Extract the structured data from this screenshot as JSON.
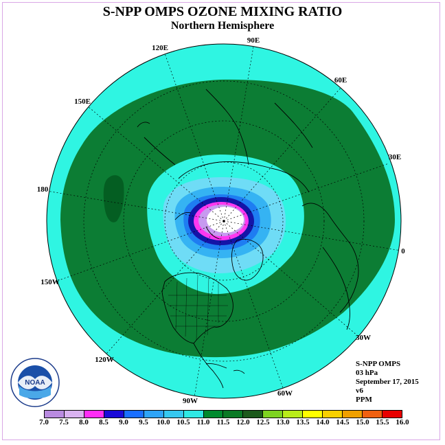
{
  "title": "S-NPP OMPS OZONE MIXING RATIO",
  "subtitle": "Northern Hemisphere",
  "longitude_labels": [
    "90E",
    "60E",
    "30E",
    "0",
    "30W",
    "60W",
    "90W",
    "120W",
    "150W",
    "180",
    "150E",
    "120E"
  ],
  "info": {
    "instrument": "S-NPP OMPS",
    "level": "03 hPa",
    "date": "September 17, 2015",
    "version": "v6",
    "units": "PPM"
  },
  "colorbar": {
    "ticks": [
      "7.0",
      "7.5",
      "8.0",
      "8.5",
      "9.0",
      "9.5",
      "10.0",
      "10.5",
      "11.0",
      "11.5",
      "12.0",
      "12.5",
      "13.0",
      "13.5",
      "14.0",
      "14.5",
      "15.0",
      "15.5",
      "16.0"
    ],
    "colors": [
      "#b98be0",
      "#d9b2f0",
      "#ff2cf5",
      "#1a0ad8",
      "#1a6fff",
      "#2ea4f7",
      "#36c8f0",
      "#2fe8e4",
      "#008a2e",
      "#0a7a25",
      "#1c5a1c",
      "#7ed321",
      "#b9ec1a",
      "#ffff00",
      "#f8d000",
      "#f0a000",
      "#f06010",
      "#e80000",
      "#8a5a3c"
    ]
  },
  "logo_text": "NOAA",
  "colors": {
    "cyan": "#2ff5e2",
    "green": "#0c7d34",
    "dark_green": "#045e22",
    "light_blue": "#6fdcf6",
    "mid_blue": "#35b3f3",
    "blue": "#1e7df2",
    "navy": "#1414a8",
    "magenta": "#ff38f0",
    "lavender": "#c79af0"
  }
}
